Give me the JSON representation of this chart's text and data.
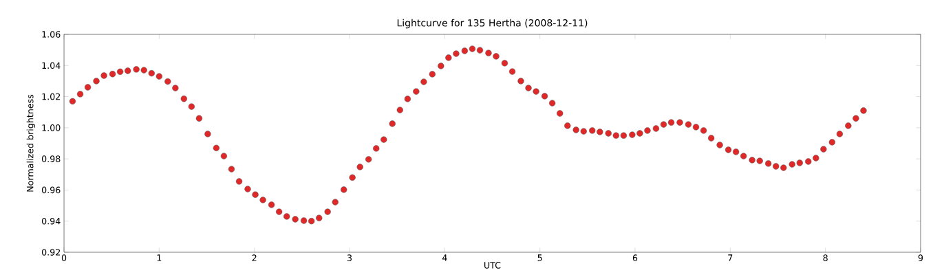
{
  "chart_data": {
    "type": "scatter",
    "title": "Lightcurve for 135 Hertha (2008-12-11)",
    "xlabel": "UTC",
    "ylabel": "Normalized brightness",
    "marker": "circle",
    "xlim": [
      0,
      9
    ],
    "xticks": [
      0,
      1,
      2,
      3,
      4,
      5,
      6,
      7,
      8,
      9
    ],
    "ylim": [
      0.92,
      1.06
    ],
    "yticks": [
      {
        "value": 0.92,
        "label": "0.92"
      },
      {
        "value": 0.94,
        "label": "0.94"
      },
      {
        "value": 0.96,
        "label": "0.96"
      },
      {
        "value": 0.98,
        "label": "0.98"
      },
      {
        "value": 1.0,
        "label": "1.00"
      },
      {
        "value": 1.02,
        "label": "1.02"
      },
      {
        "value": 1.04,
        "label": "1.04"
      },
      {
        "value": 1.06,
        "label": "1.06"
      }
    ],
    "series": [
      {
        "color": "#e02828",
        "x": [
          0.09,
          0.17,
          0.25,
          0.34,
          0.42,
          0.51,
          0.59,
          0.67,
          0.76,
          0.84,
          0.92,
          1.0,
          1.09,
          1.17,
          1.26,
          1.34,
          1.42,
          1.51,
          1.6,
          1.68,
          1.76,
          1.84,
          1.93,
          2.01,
          2.09,
          2.18,
          2.26,
          2.34,
          2.43,
          2.52,
          2.6,
          2.68,
          2.77,
          2.85,
          2.94,
          3.03,
          3.11,
          3.2,
          3.28,
          3.36,
          3.45,
          3.53,
          3.61,
          3.7,
          3.78,
          3.87,
          3.96,
          4.04,
          4.12,
          4.21,
          4.29,
          4.37,
          4.46,
          4.54,
          4.63,
          4.71,
          4.8,
          4.88,
          4.96,
          5.05,
          5.13,
          5.21,
          5.29,
          5.38,
          5.46,
          5.55,
          5.63,
          5.72,
          5.8,
          5.88,
          5.97,
          6.05,
          6.13,
          6.22,
          6.3,
          6.38,
          6.47,
          6.56,
          6.64,
          6.72,
          6.8,
          6.89,
          6.98,
          7.06,
          7.14,
          7.23,
          7.31,
          7.4,
          7.48,
          7.56,
          7.65,
          7.73,
          7.82,
          7.9,
          7.98,
          8.07,
          8.15,
          8.24,
          8.32,
          8.4
        ],
        "values": [
          1.017,
          1.0216,
          1.026,
          1.03,
          1.0335,
          1.0345,
          1.036,
          1.0366,
          1.0375,
          1.037,
          1.035,
          1.033,
          1.0297,
          1.0255,
          1.0186,
          1.0136,
          1.006,
          0.996,
          0.987,
          0.9818,
          0.9734,
          0.9655,
          0.9606,
          0.957,
          0.9536,
          0.9505,
          0.946,
          0.943,
          0.9412,
          0.9403,
          0.94,
          0.942,
          0.946,
          0.9522,
          0.9602,
          0.968,
          0.9748,
          0.9797,
          0.9867,
          0.9924,
          1.0026,
          1.0114,
          1.0185,
          1.0233,
          1.0295,
          1.0344,
          1.0397,
          1.045,
          1.0476,
          1.0494,
          1.0507,
          1.0498,
          1.048,
          1.0459,
          1.0415,
          1.0361,
          1.03,
          1.0255,
          1.0233,
          1.0203,
          1.0158,
          1.0092,
          1.0013,
          0.9986,
          0.9977,
          0.9982,
          0.9973,
          0.9964,
          0.995,
          0.995,
          0.9955,
          0.9964,
          0.9982,
          0.9995,
          1.0021,
          1.0034,
          1.0034,
          1.0021,
          1.0004,
          0.9982,
          0.9933,
          0.9889,
          0.9858,
          0.9845,
          0.9818,
          0.9792,
          0.9787,
          0.977,
          0.9752,
          0.9743,
          0.9765,
          0.9774,
          0.9783,
          0.9805,
          0.9862,
          0.9907,
          0.996,
          1.0013,
          1.006,
          1.011
        ]
      }
    ]
  }
}
